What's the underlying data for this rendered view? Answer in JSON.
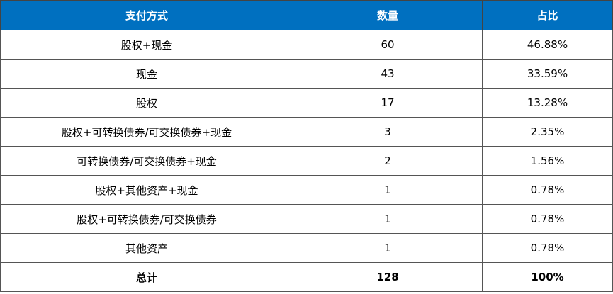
{
  "header": {
    "col1": "支付方式",
    "col2": "数量",
    "col3": "占比",
    "color": "#0070C0"
  },
  "rows": [
    {
      "method": "股权+现金",
      "count": "60",
      "share": "46.88%"
    },
    {
      "method": "现金",
      "count": "43",
      "share": "33.59%"
    },
    {
      "method": "股权",
      "count": "17",
      "share": "13.28%"
    },
    {
      "method": "股权+可转换债券/可交换债券+现金",
      "count": "3",
      "share": "2.35%"
    },
    {
      "method": "可转换债券/可交换债券+现金",
      "count": "2",
      "share": "1.56%"
    },
    {
      "method": "股权+其他资产+现金",
      "count": "1",
      "share": "0.78%"
    },
    {
      "method": "股权+可转换债券/可交换债券",
      "count": "1",
      "share": "0.78%"
    },
    {
      "method": "其他资产",
      "count": "1",
      "share": "0.78%"
    }
  ],
  "total": {
    "label": "总计",
    "count": "128",
    "share": "100%"
  }
}
